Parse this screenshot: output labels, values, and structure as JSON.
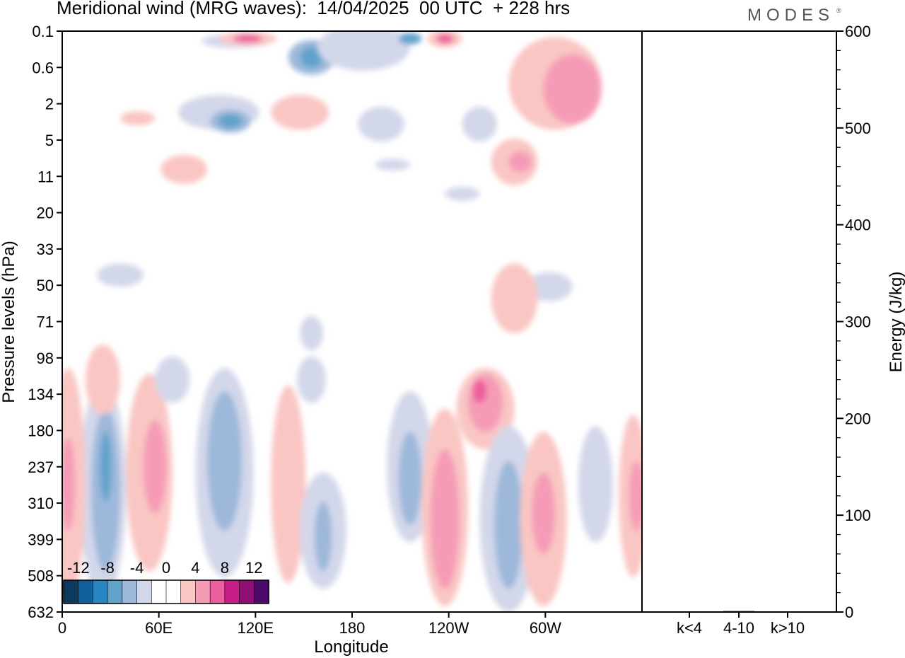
{
  "header": {
    "title": "Meridional wind (MRG waves):  14/04/2025  00 UTC  + 228 hrs",
    "brand": "MODES",
    "brand_mark": "®"
  },
  "chart_data": [
    {
      "type": "heatmap",
      "title": "Meridional wind (MRG waves):  14/04/2025  00 UTC  + 228 hrs",
      "xlabel": "Longitude",
      "ylabel": "Pressure levels (hPa)",
      "x_ticks": [
        "0",
        "60E",
        "120E",
        "180",
        "120W",
        "60W"
      ],
      "y_ticks": [
        "0.1",
        "0.6",
        "2",
        "5",
        "11",
        "20",
        "33",
        "50",
        "71",
        "98",
        "134",
        "180",
        "237",
        "310",
        "399",
        "508",
        "632"
      ],
      "colorbar": {
        "labels": [
          "-12",
          "-8",
          "-4",
          "0",
          "4",
          "8",
          "12"
        ],
        "colors": [
          "#0d3b5e",
          "#12609a",
          "#2a86c2",
          "#62a3cc",
          "#9db8da",
          "#d3d7ea",
          "#ffffff",
          "#ffffff",
          "#f9c6c3",
          "#f59bb6",
          "#ec5f9e",
          "#c81d86",
          "#8f0f75",
          "#4d0a6b"
        ]
      },
      "features": [
        {
          "sign": "neg",
          "lon": 95,
          "level": 5,
          "value": -6
        },
        {
          "sign": "neg",
          "lon": 187,
          "level": 0.1,
          "value": -6
        },
        {
          "sign": "neg",
          "lon": 25,
          "level": 180,
          "value": -7
        },
        {
          "sign": "neg",
          "lon": 100,
          "level": 200,
          "value": -4
        },
        {
          "sign": "neg",
          "lon": 163,
          "level": 380,
          "value": -4
        },
        {
          "sign": "neg",
          "lon": 220,
          "level": 300,
          "value": -4
        },
        {
          "sign": "neg",
          "lon": 270,
          "level": 380,
          "value": -7
        },
        {
          "sign": "pos",
          "lon": 112,
          "level": 0.1,
          "value": 8
        },
        {
          "sign": "pos",
          "lon": 238,
          "level": 0.1,
          "value": 8
        },
        {
          "sign": "pos",
          "lon": 257,
          "level": 150,
          "value": 8
        },
        {
          "sign": "pos",
          "lon": 58,
          "level": 200,
          "value": 6
        },
        {
          "sign": "pos",
          "lon": 237,
          "level": 400,
          "value": 6
        },
        {
          "sign": "pos",
          "lon": 285,
          "level": 300,
          "value": 5
        },
        {
          "sign": "pos",
          "lon": 357,
          "level": 250,
          "value": 7
        },
        {
          "sign": "pos",
          "lon": 309,
          "level": 0.6,
          "value": 5
        },
        {
          "sign": "pos",
          "lon": 276,
          "level": 11,
          "value": 5
        }
      ]
    },
    {
      "type": "bar",
      "categories": [
        "k<4",
        "4-10",
        "k>10"
      ],
      "values": [
        0,
        1,
        0
      ],
      "ylabel": "Energy (J/kg)",
      "ylim": [
        0,
        600
      ],
      "y_ticks": [
        "0",
        "100",
        "200",
        "300",
        "400",
        "500",
        "600"
      ]
    }
  ]
}
